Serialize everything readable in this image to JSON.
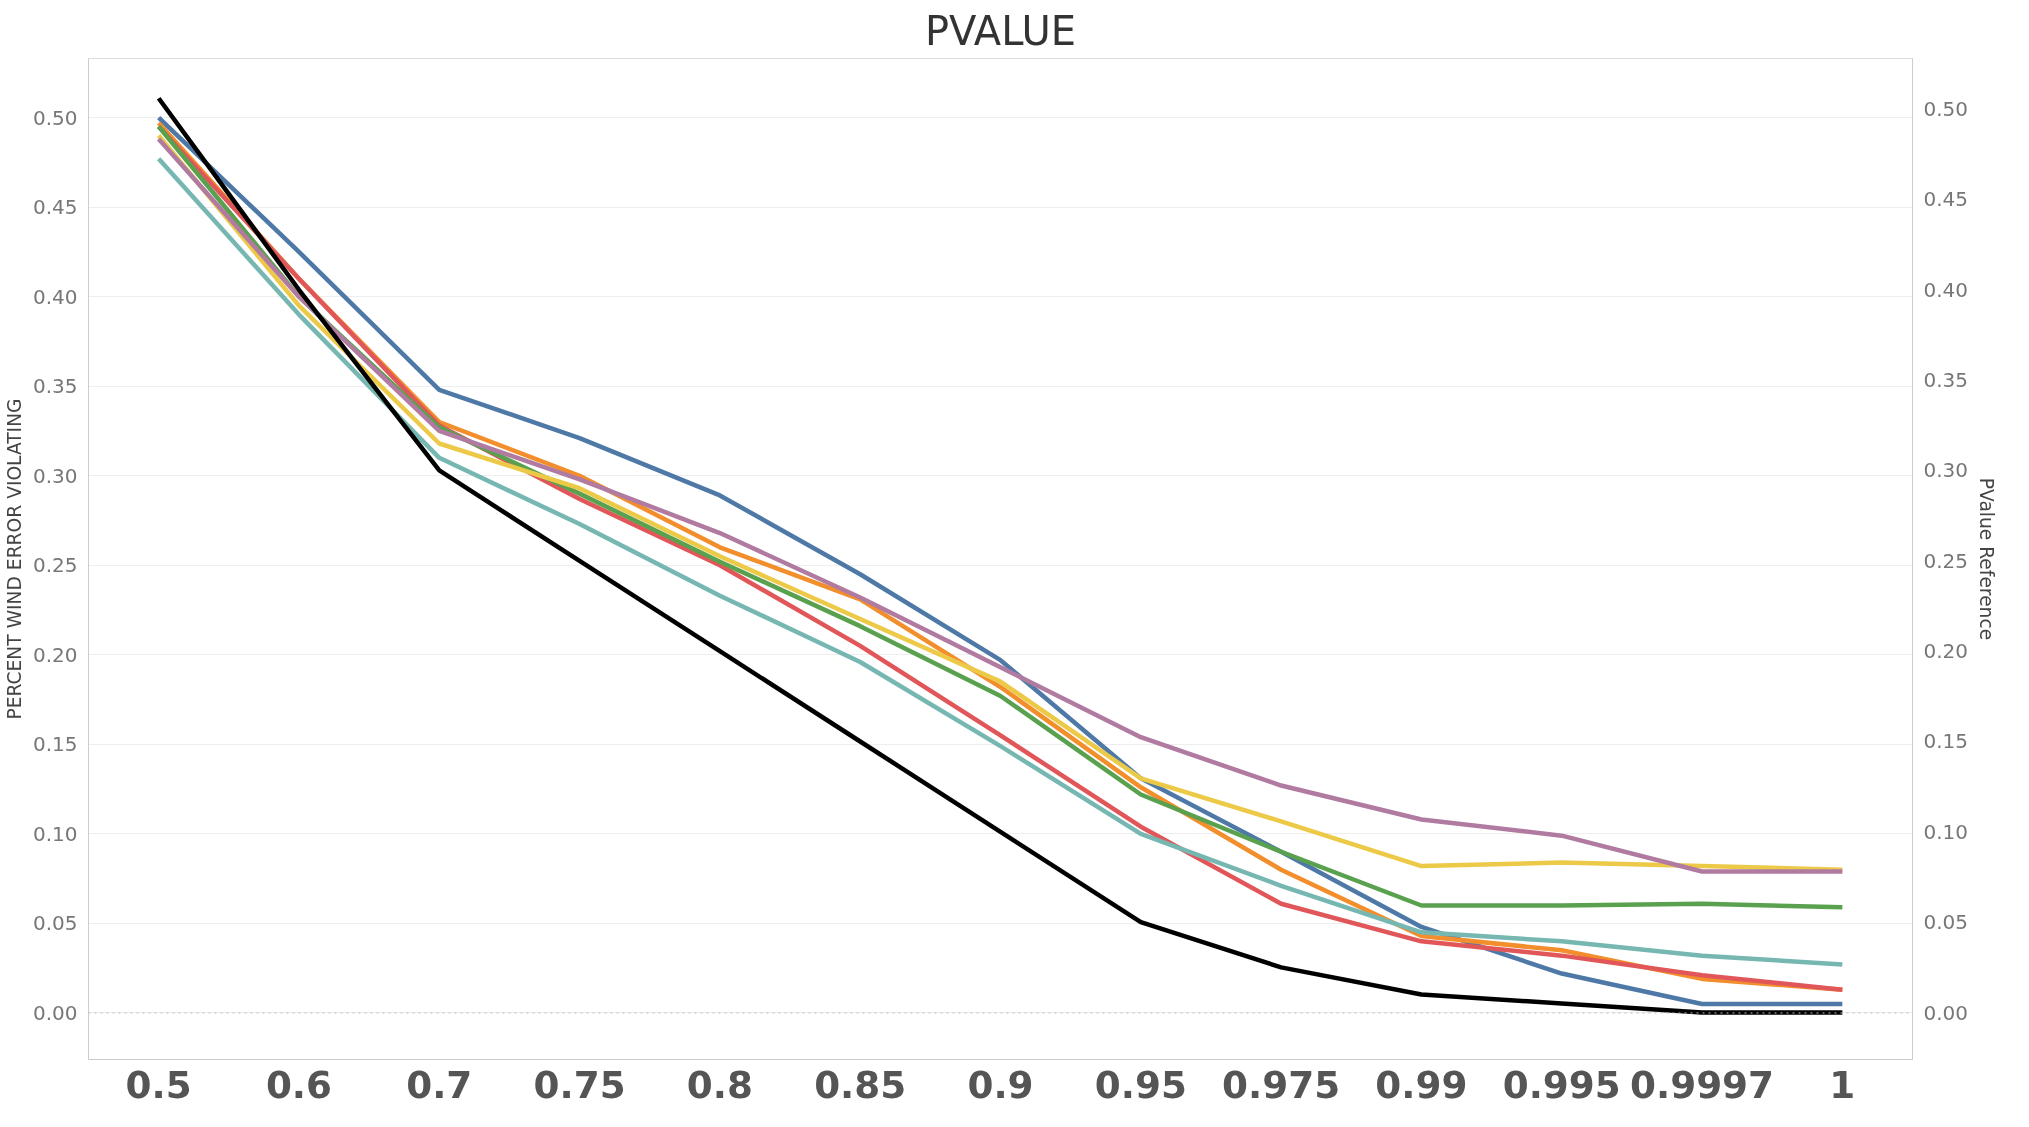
{
  "chart_data": {
    "type": "line",
    "title": "PVALUE",
    "ylabel": "PERCENT WIND ERROR VIOLATING",
    "y2label": "PValue Reference",
    "categories": [
      "0.5",
      "0.6",
      "0.7",
      "0.75",
      "0.8",
      "0.85",
      "0.9",
      "0.95",
      "0.975",
      "0.99",
      "0.995",
      "0.9997",
      "1"
    ],
    "series": [
      {
        "color": "#4e79a7",
        "values": [
          0.5,
          0.425,
          0.348,
          0.321,
          0.289,
          0.245,
          0.197,
          0.131,
          0.09,
          0.048,
          0.022,
          0.005,
          0.005
        ]
      },
      {
        "color": "#f28e2b",
        "values": [
          0.497,
          0.41,
          0.33,
          0.3,
          0.26,
          0.231,
          0.182,
          0.126,
          0.08,
          0.043,
          0.035,
          0.019,
          0.013
        ]
      },
      {
        "color": "#e15759",
        "values": [
          0.495,
          0.41,
          0.328,
          0.287,
          0.25,
          0.205,
          0.155,
          0.104,
          0.061,
          0.04,
          0.032,
          0.021,
          0.013
        ]
      },
      {
        "color": "#76b7b2",
        "values": [
          0.477,
          0.39,
          0.31,
          0.273,
          0.233,
          0.196,
          0.149,
          0.1,
          0.071,
          0.045,
          0.04,
          0.032,
          0.027
        ]
      },
      {
        "color": "#59a14f",
        "values": [
          0.495,
          0.4,
          0.327,
          0.29,
          0.252,
          0.216,
          0.177,
          0.122,
          0.09,
          0.06,
          0.06,
          0.061,
          0.059
        ]
      },
      {
        "color": "#edc948",
        "values": [
          0.49,
          0.395,
          0.318,
          0.293,
          0.255,
          0.22,
          0.185,
          0.131,
          0.107,
          0.082,
          0.084,
          0.082,
          0.08
        ]
      },
      {
        "color": "#b07aa1",
        "values": [
          0.488,
          0.4,
          0.325,
          0.298,
          0.268,
          0.232,
          0.193,
          0.154,
          0.127,
          0.108,
          0.099,
          0.079,
          0.079
        ]
      },
      {
        "color": "#000000",
        "axis": "y2",
        "values": [
          0.506,
          0.4,
          0.3,
          0.25,
          0.2,
          0.15,
          0.1,
          0.05,
          0.025,
          0.01,
          0.005,
          0,
          0
        ]
      }
    ],
    "ylim": [
      -0.026,
      0.533
    ],
    "yticks": [
      {
        "value": 0,
        "label": "0.00"
      },
      {
        "value": 0.05,
        "label": "0.05"
      },
      {
        "value": 0.1,
        "label": "0.10"
      },
      {
        "value": 0.15,
        "label": "0.15"
      },
      {
        "value": 0.2,
        "label": "0.20"
      },
      {
        "value": 0.25,
        "label": "0.25"
      },
      {
        "value": 0.3,
        "label": "0.30"
      },
      {
        "value": 0.35,
        "label": "0.35"
      },
      {
        "value": 0.4,
        "label": "0.40"
      },
      {
        "value": 0.45,
        "label": "0.45"
      },
      {
        "value": 0.5,
        "label": "0.50"
      }
    ],
    "y2lim": [
      -0.026,
      0.528
    ],
    "y2ticks": [
      {
        "value": 0,
        "label": "0.00"
      },
      {
        "value": 0.05,
        "label": "0.05"
      },
      {
        "value": 0.1,
        "label": "0.10"
      },
      {
        "value": 0.15,
        "label": "0.15"
      },
      {
        "value": 0.2,
        "label": "0.20"
      },
      {
        "value": 0.25,
        "label": "0.25"
      },
      {
        "value": 0.3,
        "label": "0.30"
      },
      {
        "value": 0.35,
        "label": "0.35"
      },
      {
        "value": 0.4,
        "label": "0.40"
      },
      {
        "value": 0.45,
        "label": "0.45"
      },
      {
        "value": 0.5,
        "label": "0.50"
      }
    ],
    "ref_lines": [
      {
        "axis": "y",
        "value": 0,
        "color": "#bbbbbb",
        "line_style": "dotted"
      }
    ],
    "grid": "y",
    "marker": "none",
    "line_style": "solid"
  }
}
